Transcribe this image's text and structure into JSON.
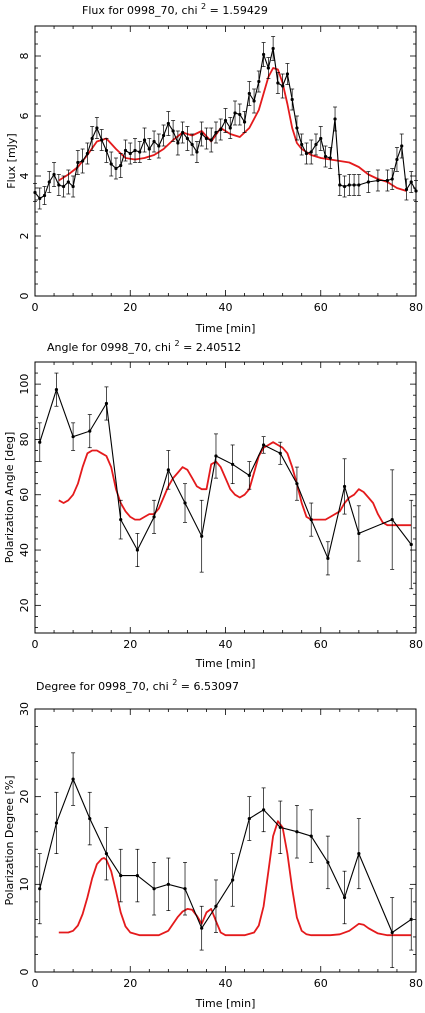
{
  "chart_data": [
    {
      "type": "line",
      "title": "Flux for 0998_70, chi",
      "title_sup": "2",
      "title_tail": "= 1.59429",
      "xlabel": "Time [min]",
      "ylabel": "Flux [mJy]",
      "xlim": [
        0,
        80
      ],
      "ylim": [
        0,
        9
      ],
      "xticks": [
        "0",
        "20",
        "40",
        "60",
        "80"
      ],
      "yticks": [
        "0",
        "2",
        "4",
        "6",
        "8"
      ],
      "xtick_values": [
        0,
        20,
        40,
        60,
        80
      ],
      "ytick_values": [
        0,
        2,
        4,
        6,
        8
      ],
      "colors": {
        "data": "#000000",
        "model": "#e41a1c"
      },
      "series": [
        {
          "role": "data",
          "x": [
            0,
            1,
            2,
            3,
            4,
            5,
            6,
            7,
            8,
            9,
            10,
            11,
            12,
            13,
            14,
            15,
            16,
            17,
            18,
            19,
            20,
            21,
            22,
            23,
            24,
            25,
            26,
            27,
            28,
            29,
            30,
            31,
            32,
            33,
            34,
            35,
            36,
            37,
            38,
            39,
            40,
            41,
            42,
            43,
            44,
            45,
            46,
            47,
            48,
            49,
            50,
            51,
            52,
            53,
            54,
            55,
            56,
            57,
            58,
            59,
            60,
            61,
            62,
            63,
            64,
            65,
            66,
            67,
            68,
            70,
            72,
            74,
            75,
            76,
            77,
            78,
            79,
            80
          ],
          "y": [
            3.45,
            3.25,
            3.35,
            3.8,
            4.05,
            3.7,
            3.65,
            3.8,
            3.65,
            4.45,
            4.5,
            4.75,
            5.25,
            5.6,
            5.2,
            4.85,
            4.4,
            4.25,
            4.35,
            4.85,
            4.75,
            4.85,
            4.8,
            5.2,
            4.9,
            5.15,
            5.0,
            5.35,
            5.75,
            5.5,
            5.1,
            5.45,
            5.25,
            5.05,
            4.8,
            5.4,
            5.25,
            5.2,
            5.45,
            5.55,
            5.85,
            5.6,
            6.1,
            6.05,
            5.8,
            6.75,
            6.5,
            7.15,
            8.05,
            7.6,
            8.25,
            7.1,
            7.0,
            7.4,
            6.55,
            5.6,
            5.05,
            4.75,
            4.8,
            5.05,
            5.25,
            4.65,
            4.6,
            5.9,
            3.7,
            3.65,
            3.7,
            3.7,
            3.7,
            3.8,
            3.85,
            3.85,
            3.9,
            4.55,
            5.0,
            3.55,
            3.8,
            3.5
          ],
          "err": [
            0.3,
            0.35,
            0.3,
            0.35,
            0.4,
            0.35,
            0.35,
            0.4,
            0.35,
            0.4,
            0.4,
            0.35,
            0.4,
            0.35,
            0.35,
            0.4,
            0.4,
            0.35,
            0.4,
            0.35,
            0.35,
            0.4,
            0.35,
            0.4,
            0.35,
            0.35,
            0.4,
            0.35,
            0.4,
            0.35,
            0.4,
            0.35,
            0.4,
            0.35,
            0.35,
            0.4,
            0.35,
            0.4,
            0.35,
            0.35,
            0.4,
            0.35,
            0.4,
            0.35,
            0.35,
            0.4,
            0.4,
            0.35,
            0.4,
            0.35,
            0.4,
            0.35,
            0.4,
            0.35,
            0.35,
            0.4,
            0.35,
            0.35,
            0.4,
            0.35,
            0.4,
            0.35,
            0.35,
            0.4,
            0.35,
            0.35,
            0.35,
            0.35,
            0.35,
            0.35,
            0.35,
            0.35,
            0.35,
            0.4,
            0.4,
            0.35,
            0.35,
            0.35
          ]
        },
        {
          "role": "model",
          "x": [
            5,
            7,
            9,
            11,
            13,
            15,
            17,
            19,
            21,
            23,
            25,
            27,
            29,
            31,
            33,
            35,
            37,
            39,
            41,
            43,
            45,
            47,
            49,
            50,
            51,
            52,
            53,
            54,
            55,
            56,
            57,
            58,
            60,
            62,
            64,
            66,
            68,
            70,
            72,
            74,
            76,
            78
          ],
          "y": [
            3.85,
            4.05,
            4.3,
            4.7,
            5.15,
            5.25,
            4.9,
            4.6,
            4.55,
            4.6,
            4.7,
            4.9,
            5.2,
            5.45,
            5.35,
            5.5,
            5.15,
            5.6,
            5.4,
            5.3,
            5.6,
            6.2,
            7.3,
            7.6,
            7.55,
            7.1,
            6.4,
            5.6,
            5.1,
            4.9,
            4.8,
            4.7,
            4.6,
            4.55,
            4.5,
            4.45,
            4.3,
            4.05,
            3.9,
            3.8,
            3.6,
            3.5
          ]
        }
      ]
    },
    {
      "type": "line",
      "title": "Angle for 0998_70, chi",
      "title_sup": "2",
      "title_tail": "= 2.40512",
      "xlabel": "Time [min]",
      "ylabel": "Polarization Angle [deg]",
      "xlim": [
        0,
        80
      ],
      "ylim": [
        10,
        108
      ],
      "xticks": [
        "0",
        "20",
        "40",
        "60",
        "80"
      ],
      "yticks": [
        "20",
        "40",
        "60",
        "80",
        "100"
      ],
      "xtick_values": [
        0,
        20,
        40,
        60,
        80
      ],
      "ytick_values": [
        20,
        40,
        60,
        80,
        100
      ],
      "colors": {
        "data": "#000000",
        "model": "#e41a1c"
      },
      "series": [
        {
          "role": "data",
          "x": [
            1,
            4.5,
            8,
            11.5,
            15,
            18,
            21.5,
            25,
            28,
            31.5,
            35,
            38,
            41.5,
            45,
            48,
            51.5,
            55,
            58,
            61.5,
            65,
            68,
            75,
            79
          ],
          "y": [
            79,
            98,
            81,
            83,
            93,
            51,
            40,
            52,
            69,
            57,
            45,
            74,
            71,
            67,
            78,
            75,
            64,
            51,
            37,
            63,
            46,
            51,
            42
          ],
          "err": [
            7,
            6,
            5,
            6,
            6,
            7,
            6,
            6,
            7,
            7,
            13,
            8,
            7,
            5,
            3,
            4,
            6,
            6,
            6,
            10,
            10,
            18,
            16
          ]
        },
        {
          "role": "model",
          "x": [
            5,
            6,
            7,
            8,
            9,
            10,
            11,
            12,
            13,
            14,
            15,
            16,
            17,
            18,
            19,
            20,
            21,
            22,
            23,
            24,
            25,
            26,
            27,
            28,
            29,
            30,
            31,
            32,
            33,
            34,
            35,
            36,
            37,
            38,
            39,
            40,
            41,
            42,
            43,
            44,
            45,
            46,
            47,
            48,
            49,
            50,
            51,
            52,
            53,
            54,
            55,
            56,
            57,
            58,
            59,
            60,
            61,
            62,
            63,
            64,
            65,
            66,
            67,
            68,
            69,
            70,
            71,
            72,
            73,
            74,
            75,
            76,
            77,
            78,
            79
          ],
          "y": [
            58,
            57,
            58,
            60,
            64,
            70,
            75,
            76,
            76,
            75,
            74,
            70,
            62,
            57,
            54,
            52,
            51,
            51,
            52,
            53,
            53,
            55,
            59,
            63,
            66,
            68,
            70,
            69,
            66,
            63,
            62,
            62,
            71,
            72,
            70,
            66,
            62,
            60,
            59,
            60,
            62,
            68,
            74,
            77,
            78,
            79,
            78,
            77,
            75,
            70,
            64,
            57,
            52,
            51,
            51,
            51,
            51,
            52,
            53,
            54,
            57,
            59,
            60,
            62,
            61,
            59,
            57,
            53,
            50,
            49,
            49,
            49,
            49,
            49,
            49
          ]
        }
      ]
    },
    {
      "type": "line",
      "title": "Degree for 0998_70, chi",
      "title_sup": "2",
      "title_tail": "= 6.53097",
      "xlabel": "Time [min]",
      "ylabel": "Polarization Degree [%]",
      "xlim": [
        0,
        80
      ],
      "ylim": [
        0,
        30
      ],
      "xticks": [
        "0",
        "20",
        "40",
        "60",
        "80"
      ],
      "yticks": [
        "0",
        "10",
        "20",
        "30"
      ],
      "xtick_values": [
        0,
        20,
        40,
        60,
        80
      ],
      "ytick_values": [
        0,
        10,
        20,
        30
      ],
      "colors": {
        "data": "#000000",
        "model": "#e41a1c"
      },
      "series": [
        {
          "role": "data",
          "x": [
            1,
            4.5,
            8,
            11.5,
            15,
            18,
            21.5,
            25,
            28,
            31.5,
            35,
            38,
            41.5,
            45,
            48,
            51.5,
            55,
            58,
            61.5,
            65,
            68,
            75,
            79
          ],
          "y": [
            9.5,
            17,
            22,
            17.5,
            13.5,
            11,
            11,
            9.5,
            10,
            9.5,
            5,
            7.5,
            10.5,
            17.5,
            18.5,
            16.5,
            16,
            15.5,
            12.5,
            8.5,
            13.5,
            4.5,
            6
          ],
          "err": [
            4,
            3.5,
            3,
            3,
            3,
            3,
            3,
            3,
            3,
            3,
            2.5,
            3,
            3,
            2.5,
            2.5,
            3,
            3,
            3,
            3,
            3,
            4,
            4,
            3.5
          ]
        },
        {
          "role": "model",
          "x": [
            5,
            7,
            8,
            9,
            10,
            11,
            12,
            13,
            14,
            14.5,
            15,
            16,
            17,
            18,
            19,
            20,
            22,
            24,
            26,
            28,
            29,
            30,
            31,
            32,
            33,
            34,
            35,
            36,
            37,
            38,
            39,
            40,
            42,
            44,
            46,
            47,
            48,
            49,
            50,
            51,
            52,
            53,
            54,
            55,
            56,
            57,
            58,
            60,
            62,
            64,
            66,
            67,
            68,
            69,
            70,
            71,
            72,
            74,
            76,
            78,
            79
          ],
          "y": [
            4.5,
            4.5,
            4.7,
            5.3,
            6.6,
            8.5,
            10.7,
            12.3,
            12.9,
            13.0,
            12.8,
            11.5,
            9.2,
            6.8,
            5.2,
            4.5,
            4.2,
            4.2,
            4.2,
            4.7,
            5.5,
            6.3,
            6.9,
            7.2,
            7.1,
            6.4,
            5.5,
            6.8,
            7.2,
            5.8,
            4.5,
            4.2,
            4.2,
            4.2,
            4.5,
            5.3,
            7.5,
            11.5,
            15.5,
            17.2,
            16.5,
            13.5,
            9.5,
            6.2,
            4.7,
            4.3,
            4.2,
            4.2,
            4.2,
            4.3,
            4.7,
            5.1,
            5.5,
            5.4,
            5.0,
            4.7,
            4.4,
            4.2,
            4.2,
            4.2,
            4.2
          ]
        }
      ]
    }
  ]
}
